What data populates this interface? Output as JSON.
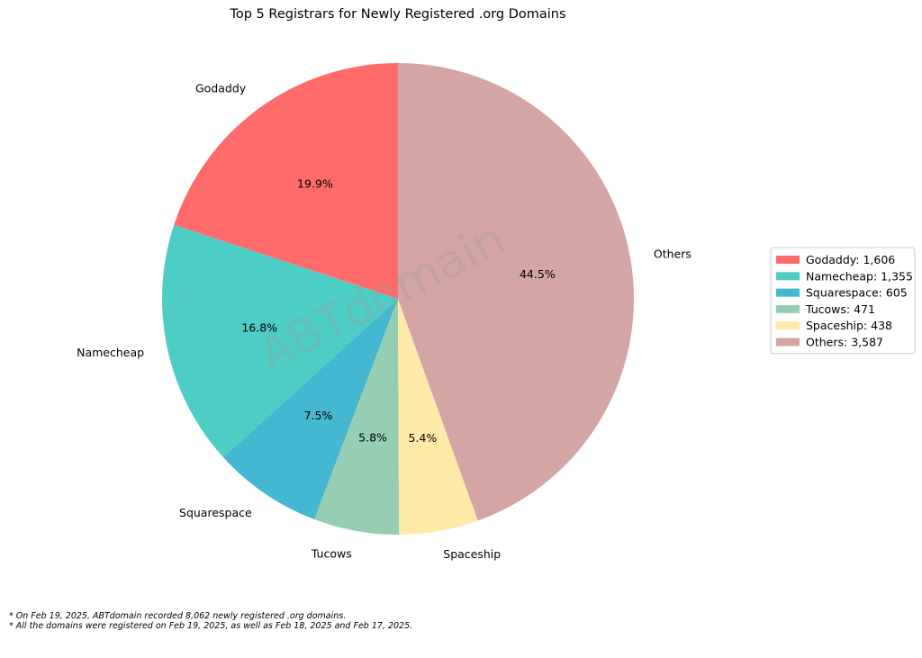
{
  "chart_data": {
    "type": "pie",
    "title": "Top 5 Registrars for Newly Registered .org Domains",
    "slices": [
      {
        "label": "Godaddy",
        "value": 1606,
        "percent_label": "19.9%",
        "legend": "Godaddy: 1,606",
        "color": "#ff6b6b"
      },
      {
        "label": "Namecheap",
        "value": 1355,
        "percent_label": "16.8%",
        "legend": "Namecheap: 1,355",
        "color": "#4ecdc4"
      },
      {
        "label": "Squarespace",
        "value": 605,
        "percent_label": "7.5%",
        "legend": "Squarespace: 605",
        "color": "#45b7d1"
      },
      {
        "label": "Tucows",
        "value": 471,
        "percent_label": "5.8%",
        "legend": "Tucows: 471",
        "color": "#96ceb4"
      },
      {
        "label": "Spaceship",
        "value": 438,
        "percent_label": "5.4%",
        "legend": "Spaceship: 438",
        "color": "#ffeaa7"
      },
      {
        "label": "Others",
        "value": 3587,
        "percent_label": "44.5%",
        "legend": "Others: 3,587",
        "color": "#d4a5a5"
      }
    ],
    "start_angle_deg": 90,
    "direction": "counterclockwise",
    "legend_position": "right",
    "watermark": "ABTdomain"
  },
  "footnotes": [
    "* On Feb 19, 2025, ABTdomain recorded 8,062 newly registered .org domains.",
    "* All the domains were registered on Feb 19, 2025, as well as Feb 18, 2025 and Feb 17, 2025."
  ]
}
